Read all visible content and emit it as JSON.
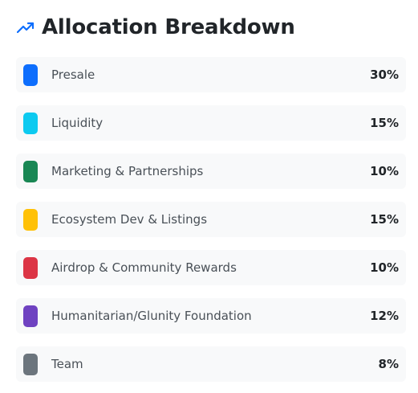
{
  "header": {
    "icon": "trending-up-icon",
    "icon_color": "#0d6efd",
    "title": "Allocation Breakdown"
  },
  "allocations": [
    {
      "label": "Presale",
      "percent": "30%",
      "color": "#0d6efd"
    },
    {
      "label": "Liquidity",
      "percent": "15%",
      "color": "#0dcaf0"
    },
    {
      "label": "Marketing & Partnerships",
      "percent": "10%",
      "color": "#198754"
    },
    {
      "label": "Ecosystem Dev & Listings",
      "percent": "15%",
      "color": "#ffc107"
    },
    {
      "label": "Airdrop & Community Rewards",
      "percent": "10%",
      "color": "#dc3545"
    },
    {
      "label": "Humanitarian/Glunity Foundation",
      "percent": "12%",
      "color": "#6f42c1"
    },
    {
      "label": "Team",
      "percent": "8%",
      "color": "#6c757d"
    }
  ]
}
